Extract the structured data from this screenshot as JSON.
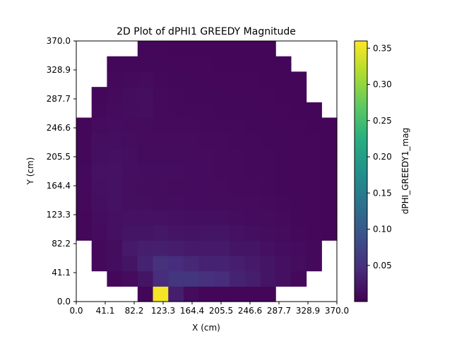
{
  "chart_data": {
    "type": "heatmap",
    "title": "2D Plot of dPHI1 GREEDY Magnitude",
    "xlabel": "X (cm)",
    "ylabel": "Y (cm)",
    "colorbar_label": "dPHI_GREEDY1_mag",
    "colormap": "viridis",
    "xlim": [
      0.0,
      370.0
    ],
    "ylim": [
      0.0,
      370.0
    ],
    "xticks": [
      "0.0",
      "41.1",
      "82.2",
      "123.3",
      "164.4",
      "205.5",
      "246.6",
      "287.7",
      "328.9",
      "370.0"
    ],
    "yticks": [
      "0.0",
      "41.1",
      "82.2",
      "123.3",
      "164.4",
      "205.5",
      "246.6",
      "287.7",
      "328.9",
      "370.0"
    ],
    "color_range": [
      0.0,
      0.36
    ],
    "colorbar_ticks": [
      "0.05",
      "0.10",
      "0.15",
      "0.20",
      "0.25",
      "0.30",
      "0.35"
    ],
    "colorbar_tick_values": [
      0.05,
      0.1,
      0.15,
      0.2,
      0.25,
      0.3,
      0.35
    ],
    "grid": false,
    "grid_size": 17,
    "row_order": "bottom-to-top",
    "values": [
      [
        null,
        null,
        null,
        null,
        0.005,
        0.355,
        0.03,
        0.01,
        0.005,
        0.005,
        0.005,
        0.005,
        0.005,
        null,
        null,
        null,
        null
      ],
      [
        null,
        null,
        0.006,
        0.01,
        0.02,
        0.045,
        0.055,
        0.055,
        0.05,
        0.045,
        0.035,
        0.03,
        0.02,
        0.015,
        0.008,
        null,
        null
      ],
      [
        null,
        0.008,
        0.012,
        0.02,
        0.035,
        0.05,
        0.045,
        0.04,
        0.035,
        0.035,
        0.03,
        0.025,
        0.02,
        0.015,
        0.012,
        0.008,
        null
      ],
      [
        null,
        0.008,
        0.012,
        0.025,
        0.03,
        0.03,
        0.028,
        0.025,
        0.025,
        0.025,
        0.02,
        0.02,
        0.015,
        0.012,
        0.01,
        0.008,
        null
      ],
      [
        0.006,
        0.01,
        0.015,
        0.02,
        0.02,
        0.022,
        0.02,
        0.018,
        0.02,
        0.02,
        0.016,
        0.014,
        0.012,
        0.01,
        0.008,
        0.006,
        0.005
      ],
      [
        0.006,
        0.012,
        0.015,
        0.016,
        0.016,
        0.016,
        0.015,
        0.014,
        0.014,
        0.014,
        0.012,
        0.011,
        0.01,
        0.009,
        0.007,
        0.006,
        0.005
      ],
      [
        0.008,
        0.014,
        0.016,
        0.014,
        0.013,
        0.012,
        0.012,
        0.011,
        0.011,
        0.011,
        0.01,
        0.01,
        0.009,
        0.008,
        0.007,
        0.006,
        0.005
      ],
      [
        0.008,
        0.015,
        0.016,
        0.013,
        0.012,
        0.012,
        0.011,
        0.011,
        0.01,
        0.01,
        0.009,
        0.009,
        0.008,
        0.007,
        0.006,
        0.006,
        0.005
      ],
      [
        0.008,
        0.016,
        0.017,
        0.014,
        0.012,
        0.012,
        0.012,
        0.011,
        0.011,
        0.009,
        0.009,
        0.008,
        0.008,
        0.007,
        0.006,
        0.006,
        0.005
      ],
      [
        0.007,
        0.014,
        0.015,
        0.013,
        0.011,
        0.011,
        0.011,
        0.01,
        0.01,
        0.009,
        0.009,
        0.008,
        0.008,
        0.007,
        0.006,
        0.006,
        0.005
      ],
      [
        0.007,
        0.013,
        0.013,
        0.012,
        0.011,
        0.01,
        0.01,
        0.01,
        0.009,
        0.009,
        0.008,
        0.008,
        0.007,
        0.007,
        0.006,
        0.006,
        0.005
      ],
      [
        0.006,
        0.011,
        0.012,
        0.011,
        0.01,
        0.009,
        0.009,
        0.009,
        0.008,
        0.008,
        0.008,
        0.007,
        0.007,
        0.006,
        0.006,
        0.005,
        0.005
      ],
      [
        null,
        0.008,
        0.01,
        0.012,
        0.013,
        0.009,
        0.008,
        0.008,
        0.008,
        0.007,
        0.007,
        0.007,
        0.006,
        0.006,
        0.005,
        0.005,
        null
      ],
      [
        null,
        0.007,
        0.009,
        0.012,
        0.014,
        0.009,
        0.008,
        0.007,
        0.007,
        0.007,
        0.006,
        0.006,
        0.006,
        0.005,
        0.005,
        null,
        null
      ],
      [
        null,
        null,
        0.008,
        0.009,
        0.01,
        0.008,
        0.007,
        0.007,
        0.006,
        0.006,
        0.006,
        0.006,
        0.005,
        0.005,
        0.005,
        null,
        null
      ],
      [
        null,
        null,
        0.006,
        0.007,
        0.007,
        0.007,
        0.006,
        0.006,
        0.006,
        0.005,
        0.005,
        0.005,
        0.005,
        0.005,
        null,
        null,
        null
      ],
      [
        null,
        null,
        null,
        null,
        0.006,
        0.006,
        0.005,
        0.005,
        0.005,
        0.005,
        0.005,
        0.005,
        0.005,
        null,
        null,
        null,
        null
      ]
    ]
  }
}
